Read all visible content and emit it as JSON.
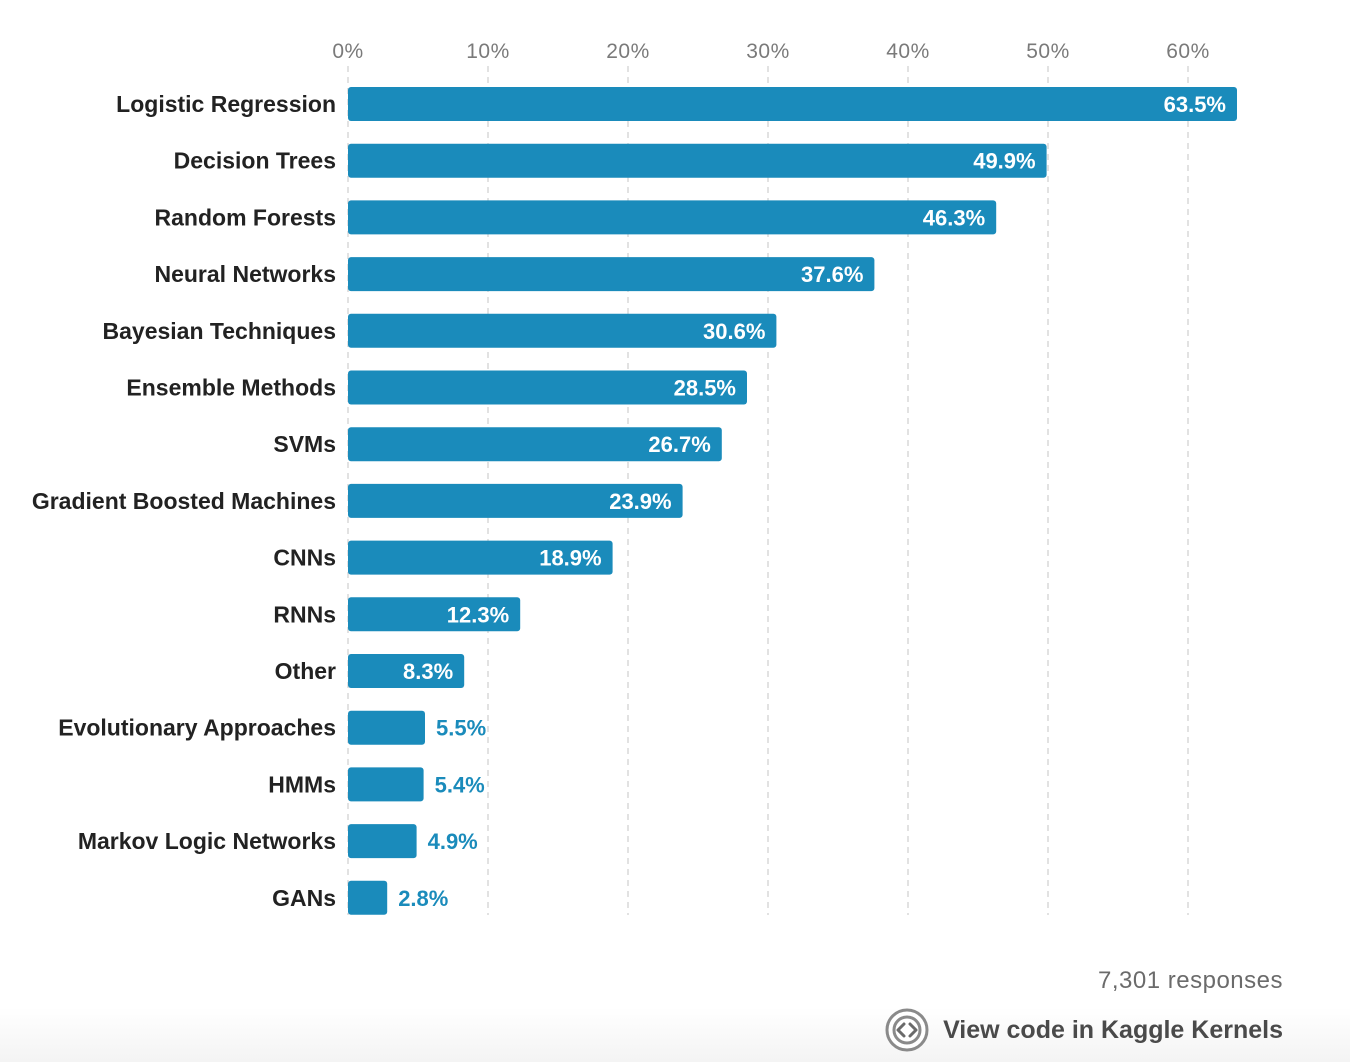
{
  "chart_data": {
    "type": "bar",
    "orientation": "horizontal",
    "categories": [
      "Logistic Regression",
      "Decision Trees",
      "Random Forests",
      "Neural Networks",
      "Bayesian Techniques",
      "Ensemble Methods",
      "SVMs",
      "Gradient Boosted Machines",
      "CNNs",
      "RNNs",
      "Other",
      "Evolutionary Approaches",
      "HMMs",
      "Markov Logic Networks",
      "GANs"
    ],
    "values": [
      63.5,
      49.9,
      46.3,
      37.6,
      30.6,
      28.5,
      26.7,
      23.9,
      18.9,
      12.3,
      8.3,
      5.5,
      5.4,
      4.9,
      2.8
    ],
    "value_labels": [
      "63.5%",
      "49.9%",
      "46.3%",
      "37.6%",
      "30.6%",
      "28.5%",
      "26.7%",
      "23.9%",
      "18.9%",
      "12.3%",
      "8.3%",
      "5.5%",
      "5.4%",
      "4.9%",
      "2.8%"
    ],
    "xticks": [
      0,
      10,
      20,
      30,
      40,
      50,
      60
    ],
    "xtick_labels": [
      "0%",
      "10%",
      "20%",
      "30%",
      "40%",
      "50%",
      "60%"
    ],
    "xlim": [
      0,
      64
    ],
    "xaxis_position": "top",
    "grid": true,
    "legend": false,
    "title": "",
    "xlabel": "",
    "ylabel": "",
    "colors": {
      "bar": "#1a8bbb",
      "label_inside": "#ffffff",
      "label_outside": "#1a8bbb",
      "category_text": "#222222",
      "tick_text": "#7a7a7a",
      "grid": "#d9d9d9"
    }
  },
  "footer": {
    "responses": "7,301 responses",
    "kernel_link_label": "View code in Kaggle Kernels",
    "kernel_icon": "kaggle-code-icon"
  }
}
